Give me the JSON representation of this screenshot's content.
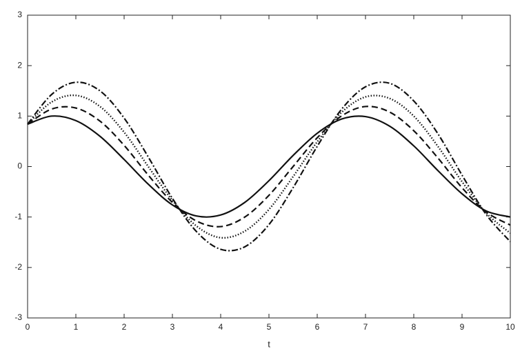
{
  "chart_data": {
    "type": "line",
    "xlabel": "t",
    "x": [
      0,
      0.5,
      1,
      1.5,
      2,
      2.5,
      3,
      3.5,
      4,
      4.5,
      5,
      5.5,
      6,
      6.5,
      7,
      7.5,
      8,
      8.5,
      9,
      9.5,
      10
    ],
    "series": [
      {
        "color": "#111111",
        "style": "solid",
        "values": [
          0.84,
          1.0,
          0.91,
          0.6,
          0.14,
          -0.35,
          -0.76,
          -0.98,
          -0.96,
          -0.71,
          -0.28,
          0.22,
          0.66,
          0.94,
          0.99,
          0.8,
          0.41,
          -0.08,
          -0.54,
          -0.88,
          -1.0
        ]
      },
      {
        "color": "#111111",
        "style": "dashed",
        "values": [
          0.84,
          1.14,
          1.16,
          0.9,
          0.42,
          -0.17,
          -0.71,
          -1.08,
          -1.19,
          -1.0,
          -0.57,
          0.0,
          0.57,
          1.0,
          1.19,
          1.08,
          0.71,
          0.17,
          -0.42,
          -0.9,
          -1.16
        ]
      },
      {
        "color": "#111111",
        "style": "dotted",
        "values": [
          0.84,
          1.28,
          1.41,
          1.19,
          0.68,
          0.0,
          -0.67,
          -1.18,
          -1.41,
          -1.28,
          -0.85,
          -0.2,
          0.49,
          1.07,
          1.38,
          1.35,
          1.0,
          0.4,
          -0.3,
          -0.92,
          -1.32
        ]
      },
      {
        "color": "#111111",
        "style": "dashdot",
        "values": [
          0.84,
          1.43,
          1.67,
          1.5,
          0.96,
          0.19,
          -0.63,
          -1.29,
          -1.64,
          -1.59,
          -1.15,
          -0.42,
          0.4,
          1.13,
          1.58,
          1.65,
          1.3,
          0.65,
          -0.17,
          -0.95,
          -1.49
        ]
      }
    ],
    "xlim": [
      0,
      10
    ],
    "xticks": [
      0,
      1,
      2,
      3,
      4,
      5,
      6,
      7,
      8,
      9,
      10
    ],
    "ylim": [
      -3,
      3
    ],
    "yticks": [
      -3,
      -2,
      -1,
      0,
      1,
      2,
      3
    ],
    "grid": false
  }
}
